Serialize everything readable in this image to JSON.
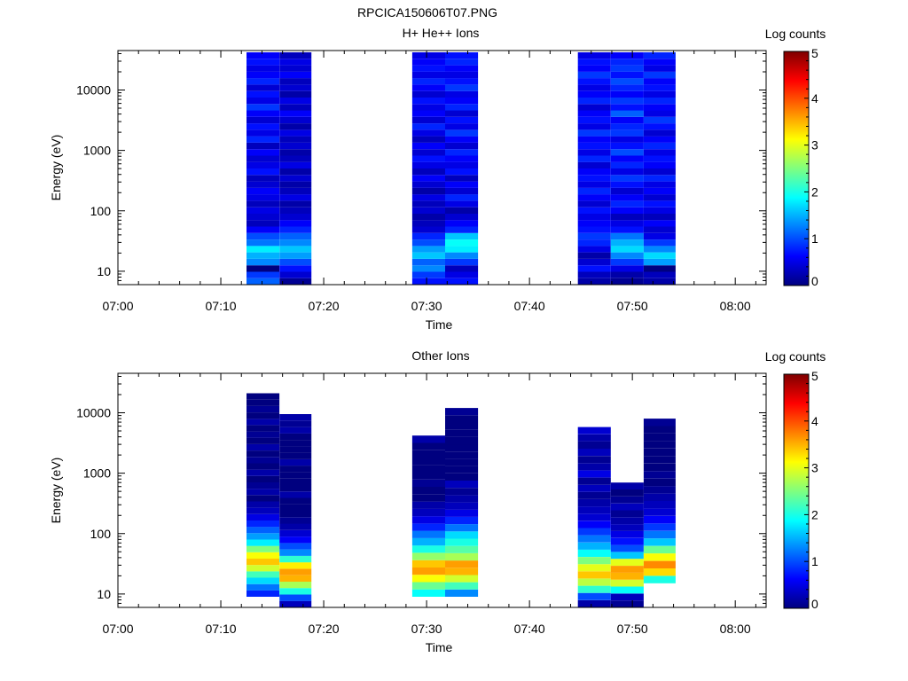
{
  "figure_title": "RPCICA150606T07.PNG",
  "colors": {
    "colormap": [
      "#00007f",
      "#0000ff",
      "#007fff",
      "#00ffff",
      "#7fff7f",
      "#ffff00",
      "#ff7f00",
      "#ff0000",
      "#7f0000"
    ]
  },
  "chart_data": [
    {
      "type": "heatmap",
      "title": "H+ He++ Ions",
      "xlabel": "Time",
      "ylabel": "Energy (eV)",
      "yscale": "log",
      "ylim": [
        6,
        45000
      ],
      "xlim": [
        "07:00",
        "08:03"
      ],
      "xticks": [
        "07:00",
        "07:10",
        "07:20",
        "07:30",
        "07:40",
        "07:50",
        "08:00"
      ],
      "yticks": [
        "10",
        "100",
        "1000",
        "10000"
      ],
      "colorbar": {
        "label": "Log counts",
        "range": [
          0,
          5
        ],
        "ticks": [
          "0",
          "1",
          "2",
          "3",
          "4",
          "5"
        ]
      },
      "columns": [
        {
          "start": "07:12.5",
          "end": "07:15.7",
          "emin": 6,
          "emax": 42000,
          "levels": [
            1.1,
            0.9,
            0.0,
            1.3,
            1.5,
            1.8,
            1.2,
            1.0,
            0.6,
            0.3,
            0.4,
            0.5,
            0.3,
            0.5,
            0.6,
            0.4,
            0.3,
            0.7,
            0.5,
            0.4,
            0.6,
            0.3,
            0.8,
            0.5,
            0.7,
            0.4,
            0.6,
            0.9,
            0.5,
            0.7,
            0.4,
            0.8,
            0.6,
            0.5,
            0.7,
            0.6
          ]
        },
        {
          "start": "07:15.7",
          "end": "07:18.8",
          "emin": 6,
          "emax": 42000,
          "levels": [
            0.1,
            0.4,
            0.7,
            1.0,
            1.4,
            1.6,
            1.3,
            1.1,
            0.8,
            0.6,
            0.4,
            0.3,
            0.2,
            0.5,
            0.3,
            0.2,
            0.4,
            0.2,
            0.5,
            0.3,
            0.2,
            0.4,
            0.3,
            0.5,
            0.2,
            0.4,
            0.6,
            0.3,
            0.5,
            0.2,
            0.4,
            0.3,
            0.6,
            0.4,
            0.5,
            0.3
          ]
        },
        {
          "start": "07:28.6",
          "end": "07:31.8",
          "emin": 6,
          "emax": 42000,
          "levels": [
            0.7,
            0.9,
            1.3,
            1.1,
            1.6,
            1.4,
            1.0,
            0.8,
            0.4,
            0.3,
            0.2,
            0.4,
            0.3,
            0.5,
            0.2,
            0.4,
            0.6,
            0.3,
            0.5,
            0.7,
            0.4,
            0.6,
            0.3,
            0.5,
            0.8,
            0.4,
            0.6,
            0.5,
            0.7,
            0.4,
            0.6,
            0.8,
            0.5,
            0.7,
            0.6,
            0.5
          ]
        },
        {
          "start": "07:31.8",
          "end": "07:35.0",
          "emin": 6,
          "emax": 42000,
          "levels": [
            0.7,
            0.5,
            0.3,
            0.9,
            1.3,
            1.8,
            1.9,
            1.6,
            0.8,
            0.6,
            0.4,
            0.2,
            0.5,
            0.8,
            0.4,
            0.6,
            0.3,
            0.7,
            0.5,
            0.6,
            0.8,
            0.4,
            0.6,
            0.9,
            0.5,
            0.7,
            0.4,
            0.8,
            0.6,
            0.5,
            0.9,
            0.7,
            0.5,
            0.6,
            0.8,
            0.7
          ]
        },
        {
          "start": "07:44.7",
          "end": "07:47.9",
          "emin": 6,
          "emax": 42000,
          "levels": [
            0.2,
            0.3,
            0.7,
            0.4,
            0.2,
            0.5,
            0.8,
            0.9,
            0.7,
            0.6,
            0.5,
            0.7,
            0.4,
            0.6,
            0.8,
            0.5,
            0.7,
            0.6,
            0.4,
            0.8,
            0.5,
            0.7,
            0.6,
            0.9,
            0.5,
            0.7,
            0.6,
            0.4,
            0.8,
            0.6,
            0.5,
            0.7,
            0.9,
            0.6,
            0.7,
            0.5
          ]
        },
        {
          "start": "07:47.9",
          "end": "07:51.1",
          "emin": 6,
          "emax": 42000,
          "levels": [
            0.1,
            0.2,
            0.5,
            0.9,
            1.3,
            1.7,
            1.5,
            1.2,
            0.7,
            0.5,
            0.3,
            0.6,
            0.8,
            0.6,
            0.4,
            0.7,
            0.9,
            0.5,
            0.8,
            0.6,
            1.0,
            0.7,
            0.5,
            0.9,
            0.8,
            0.6,
            1.1,
            0.7,
            0.9,
            0.6,
            0.8,
            1.0,
            0.7,
            0.9,
            0.8,
            0.6
          ]
        },
        {
          "start": "07:51.1",
          "end": "07:54.2",
          "emin": 6,
          "emax": 42000,
          "levels": [
            0.2,
            0.3,
            0.0,
            1.4,
            1.7,
            1.3,
            0.9,
            0.5,
            0.4,
            0.6,
            0.3,
            0.5,
            0.7,
            0.4,
            0.6,
            0.5,
            0.8,
            0.4,
            0.6,
            0.7,
            0.5,
            0.8,
            0.6,
            0.4,
            0.7,
            0.9,
            0.5,
            0.6,
            0.8,
            0.5,
            0.7,
            0.6,
            0.9,
            0.5,
            0.6,
            0.8
          ]
        }
      ]
    },
    {
      "type": "heatmap",
      "title": "Other Ions",
      "xlabel": "Time",
      "ylabel": "Energy (eV)",
      "yscale": "log",
      "ylim": [
        6,
        45000
      ],
      "xlim": [
        "07:00",
        "08:03"
      ],
      "xticks": [
        "07:00",
        "07:10",
        "07:20",
        "07:30",
        "07:40",
        "07:50",
        "08:00"
      ],
      "yticks": [
        "10",
        "100",
        "1000",
        "10000"
      ],
      "colorbar": {
        "label": "Log counts",
        "range": [
          0,
          5
        ],
        "ticks": [
          "0",
          "1",
          "2",
          "3",
          "4",
          "5"
        ]
      },
      "columns": [
        {
          "start": "07:12.5",
          "end": "07:15.7",
          "emin": 9,
          "emax": 21000,
          "levels": [
            0.8,
            1.2,
            1.7,
            2.2,
            2.9,
            3.4,
            3.1,
            2.5,
            1.8,
            1.4,
            1.1,
            0.8,
            0.5,
            0.3,
            0.2,
            0.0,
            0.2,
            0.1,
            0.0,
            0.2,
            0.0,
            0.1,
            0.0,
            0.2,
            0.0,
            0.1,
            0.0,
            0.2,
            0.0,
            0.1,
            0.0,
            0.0
          ]
        },
        {
          "start": "07:15.7",
          "end": "07:18.8",
          "emin": 6,
          "emax": 9500,
          "levels": [
            0.3,
            1.0,
            2.0,
            2.7,
            3.5,
            3.6,
            3.2,
            2.1,
            1.3,
            1.0,
            0.6,
            0.4,
            0.2,
            0.1,
            0.0,
            0.0,
            0.0,
            0.2,
            0.0,
            0.0,
            0.0,
            0.0,
            0.2,
            0.0,
            0.0,
            0.0,
            0.0,
            0.2,
            0.1,
            0.2
          ]
        },
        {
          "start": "07:28.6",
          "end": "07:31.8",
          "emin": 9,
          "emax": 4200,
          "levels": [
            1.9,
            2.4,
            3.1,
            3.6,
            3.4,
            2.6,
            2.0,
            1.5,
            1.2,
            0.8,
            0.5,
            0.3,
            0.2,
            0.0,
            0.0,
            0.1,
            0.0,
            0.0,
            0.0,
            0.0,
            0.0,
            0.2
          ]
        },
        {
          "start": "07:31.8",
          "end": "07:35.0",
          "emin": 9,
          "emax": 12000,
          "levels": [
            1.3,
            2.2,
            2.9,
            3.5,
            3.6,
            2.7,
            2.3,
            2.0,
            1.7,
            1.2,
            0.8,
            0.5,
            0.3,
            0.2,
            0.1,
            0.3,
            0.0,
            0.0,
            0.0,
            0.0,
            0.0,
            0.0,
            0.0,
            0.0,
            0.0,
            0.1
          ]
        },
        {
          "start": "07:44.7",
          "end": "07:47.9",
          "emin": 6,
          "emax": 5800,
          "levels": [
            0.2,
            1.0,
            2.1,
            2.8,
            3.4,
            3.0,
            2.5,
            1.9,
            1.5,
            1.2,
            0.9,
            0.6,
            0.4,
            0.3,
            0.2,
            0.1,
            0.3,
            0.1,
            0.5,
            0.2,
            0.1,
            0.3,
            0.1,
            0.2,
            0.4
          ]
        },
        {
          "start": "07:47.9",
          "end": "07:51.1",
          "emin": 6,
          "emax": 700,
          "levels": [
            0.1,
            0.3,
            1.9,
            2.9,
            3.5,
            3.6,
            3.0,
            1.6,
            1.0,
            0.7,
            0.5,
            0.3,
            0.2,
            0.1,
            0.3,
            0.1,
            0.0,
            0.2
          ]
        },
        {
          "start": "07:51.1",
          "end": "07:54.2",
          "emin": 15,
          "emax": 8000,
          "levels": [
            2.0,
            3.3,
            3.7,
            3.1,
            2.4,
            1.6,
            1.2,
            0.9,
            0.6,
            0.4,
            0.3,
            0.2,
            0.1,
            0.0,
            0.1,
            0.0,
            0.0,
            0.0,
            0.0,
            0.0,
            0.0,
            0.1
          ]
        }
      ]
    }
  ]
}
